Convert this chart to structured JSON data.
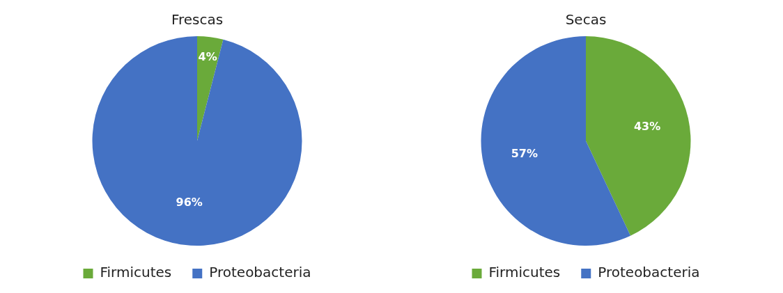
{
  "chart_data": [
    {
      "type": "pie",
      "title": "Frescas",
      "categories": [
        "Firmicutes",
        "Proteobacteria"
      ],
      "values": [
        4,
        96
      ],
      "colors": [
        "#6aaa3a",
        "#4472c4"
      ],
      "value_labels": [
        "4%",
        "96%"
      ],
      "legend": "bottom"
    },
    {
      "type": "pie",
      "title": "Secas",
      "categories": [
        "Firmicutes",
        "Proteobacteria"
      ],
      "values": [
        43,
        57
      ],
      "colors": [
        "#6aaa3a",
        "#4472c4"
      ],
      "value_labels": [
        "43%",
        "57%"
      ],
      "legend": "bottom"
    }
  ]
}
